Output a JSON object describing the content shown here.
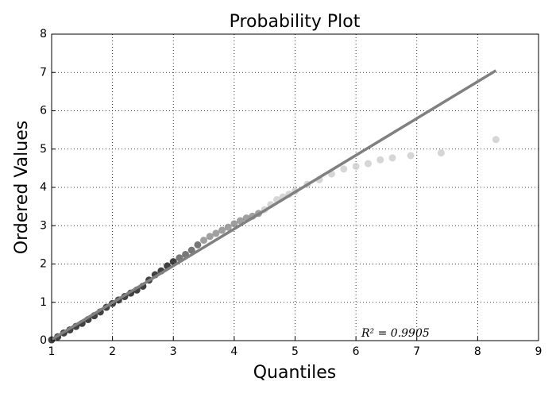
{
  "chart_data": {
    "type": "scatter",
    "title": "Probability Plot",
    "x_label": "Quantiles",
    "y_label": "Ordered Values",
    "annotation": "R² = 0.9905",
    "xlim": [
      1,
      9
    ],
    "ylim": [
      0,
      8
    ],
    "xticks": [
      1,
      2,
      3,
      4,
      5,
      6,
      7,
      8,
      9
    ],
    "yticks": [
      0,
      1,
      2,
      3,
      4,
      5,
      6,
      7,
      8
    ],
    "grid": true,
    "points": {
      "x": [
        1.0,
        1.1,
        1.2,
        1.3,
        1.4,
        1.5,
        1.6,
        1.7,
        1.8,
        1.9,
        2.0,
        2.1,
        2.2,
        2.3,
        2.4,
        2.5,
        2.6,
        2.7,
        2.8,
        2.9,
        3.0,
        3.1,
        3.2,
        3.3,
        3.4,
        3.5,
        3.6,
        3.7,
        3.8,
        3.9,
        4.0,
        4.1,
        4.2,
        4.3,
        4.4,
        4.5,
        4.6,
        4.7,
        4.8,
        4.9,
        5.0,
        5.2,
        5.4,
        5.6,
        5.8,
        6.0,
        6.2,
        6.4,
        6.6,
        6.9,
        7.4,
        8.3
      ],
      "y": [
        0.02,
        0.1,
        0.2,
        0.28,
        0.37,
        0.45,
        0.55,
        0.65,
        0.75,
        0.87,
        0.97,
        1.06,
        1.15,
        1.24,
        1.32,
        1.42,
        1.58,
        1.72,
        1.82,
        1.95,
        2.06,
        2.16,
        2.25,
        2.36,
        2.5,
        2.62,
        2.72,
        2.8,
        2.88,
        2.96,
        3.05,
        3.13,
        3.2,
        3.25,
        3.32,
        3.42,
        3.55,
        3.68,
        3.75,
        3.82,
        3.9,
        4.08,
        4.2,
        4.35,
        4.48,
        4.55,
        4.62,
        4.72,
        4.77,
        4.83,
        4.9,
        5.25
      ],
      "colors": [
        "#111111",
        "#111111",
        "#111111",
        "#111111",
        "#111111",
        "#111111",
        "#111111",
        "#111111",
        "#111111",
        "#111111",
        "#111111",
        "#111111",
        "#111111",
        "#111111",
        "#111111",
        "#111111",
        "#111111",
        "#111111",
        "#111111",
        "#111111",
        "#111111",
        "#555555",
        "#555555",
        "#555555",
        "#555555",
        "#888888",
        "#888888",
        "#888888",
        "#888888",
        "#888888",
        "#888888",
        "#888888",
        "#888888",
        "#888888",
        "#888888",
        "#cccccc",
        "#cccccc",
        "#cccccc",
        "#cccccc",
        "#cccccc",
        "#cccccc",
        "#cccccc",
        "#cccccc",
        "#cccccc",
        "#cccccc",
        "#cccccc",
        "#cccccc",
        "#cccccc",
        "#cccccc",
        "#cccccc",
        "#cccccc",
        "#cccccc"
      ]
    },
    "fit": {
      "x": [
        1,
        8.3
      ],
      "y": [
        0.03,
        7.05
      ],
      "color": "#808080"
    }
  }
}
